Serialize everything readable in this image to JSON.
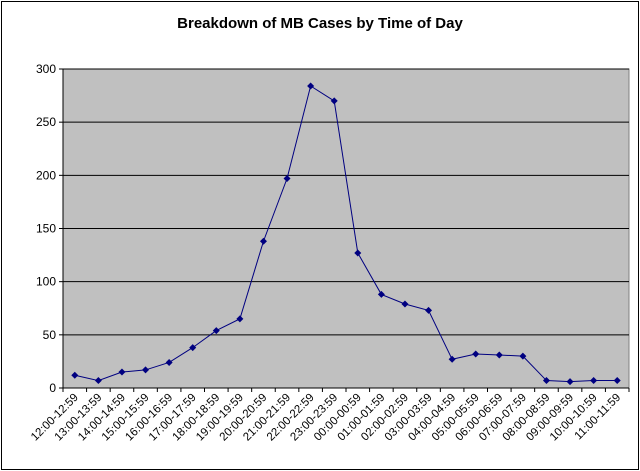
{
  "chart_data": {
    "type": "line",
    "title": "Breakdown of MB Cases by Time of Day",
    "xlabel": "",
    "ylabel": "",
    "ylim": [
      0,
      300
    ],
    "yticks": [
      0,
      50,
      100,
      150,
      200,
      250,
      300
    ],
    "grid": true,
    "legend": "none",
    "plot_background": "#c0c0c0",
    "line_color": "#000080",
    "categories": [
      "12:00-12:59",
      "13:00-13:59",
      "14:00-14:59",
      "15:00-15:59",
      "16:00-16:59",
      "17:00-17:59",
      "18:00-18:59",
      "19:00-19:59",
      "20:00-20:59",
      "21:00-21:59",
      "22:00-22:59",
      "23:00-23:59",
      "00:00-00:59",
      "01:00-01:59",
      "02:00-02:59",
      "03:00-03:59",
      "04:00-04:59",
      "05:00-05:59",
      "06:00-06:59",
      "07:00-07:59",
      "08:00-08:59",
      "09:00-09:59",
      "10:00-10:59",
      "11:00-11:59"
    ],
    "series": [
      {
        "values": [
          12,
          7,
          15,
          17,
          24,
          38,
          54,
          65,
          138,
          197,
          284,
          270,
          127,
          88,
          79,
          73,
          27,
          32,
          31,
          30,
          7,
          6,
          7,
          7
        ]
      }
    ]
  }
}
